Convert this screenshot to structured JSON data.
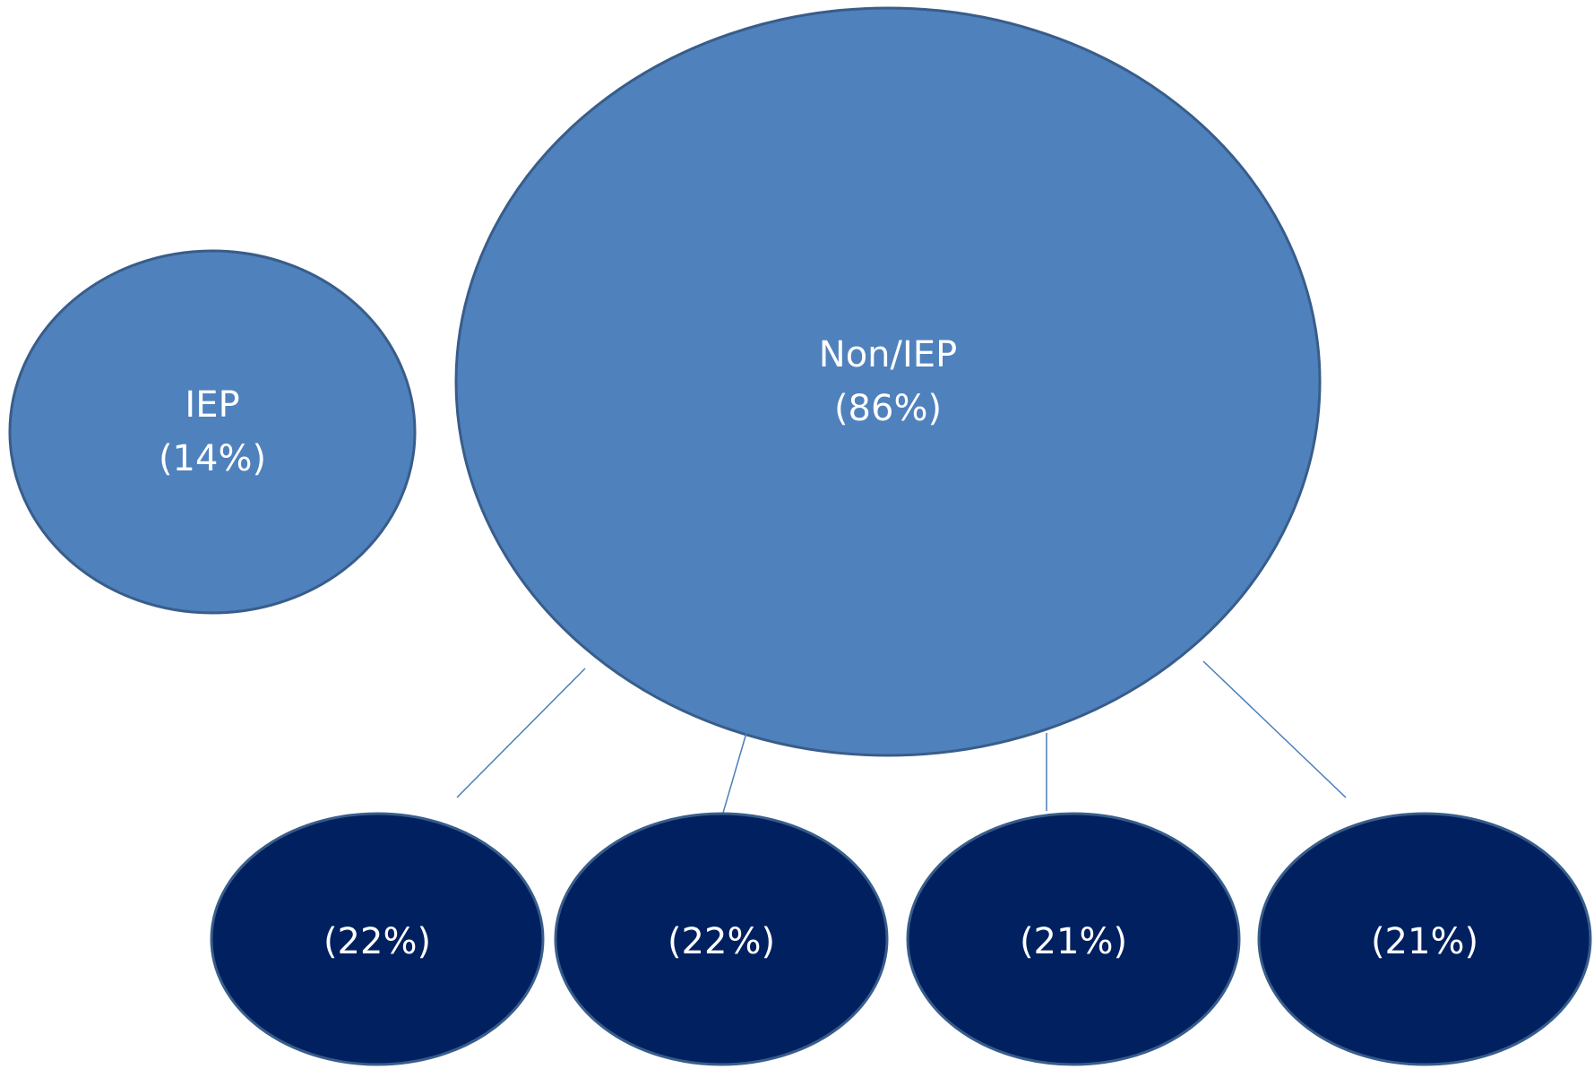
{
  "nodes": [
    {
      "label": "IEP",
      "value": "(14%)"
    },
    {
      "label": "Non/IEP",
      "value": "(86%)"
    },
    {
      "value": "(22%)"
    },
    {
      "value": "(22%)"
    },
    {
      "value": "(21%)"
    },
    {
      "value": "(21%)"
    }
  ]
}
